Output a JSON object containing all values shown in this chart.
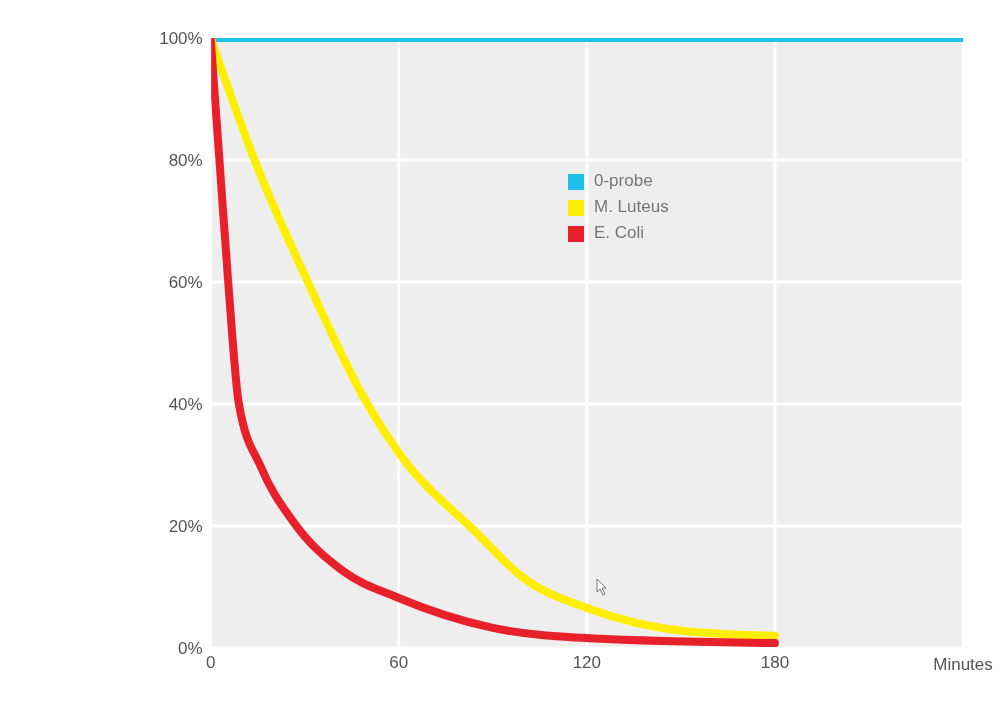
{
  "chart_data": {
    "type": "line",
    "xlabel": "Minutes",
    "xlim": [
      0,
      240
    ],
    "xticks": [
      0,
      60,
      120,
      180
    ],
    "ylim": [
      0,
      100
    ],
    "yticks": [
      {
        "value": 0,
        "label": "0%"
      },
      {
        "value": 20,
        "label": "20%"
      },
      {
        "value": 40,
        "label": "40%"
      },
      {
        "value": 60,
        "label": "60%"
      },
      {
        "value": 80,
        "label": "80%"
      },
      {
        "value": 100,
        "label": "100%"
      }
    ],
    "grid": true,
    "legend": "top right",
    "marker": "none",
    "line_style": "solid",
    "series": [
      {
        "name": "0-probe",
        "color": "#1ec0ec",
        "x": [
          0,
          240
        ],
        "values": [
          100,
          100
        ]
      },
      {
        "name": "M. Luteus",
        "color": "#ffee00",
        "x": [
          0,
          14,
          31,
          50,
          60,
          85,
          99,
          121,
          151,
          180
        ],
        "values": [
          100,
          80,
          60,
          40,
          32,
          18.8,
          11.8,
          6.4,
          2.8,
          2
        ]
      },
      {
        "name": "E. Coli",
        "color": "#e8202a",
        "x": [
          0,
          2.8,
          5.6,
          9,
          16,
          26.5,
          42,
          60,
          90,
          121,
          180
        ],
        "values": [
          100,
          80,
          60,
          40,
          29.7,
          20.6,
          12.7,
          8.2,
          3.3,
          1.6,
          0.8
        ]
      }
    ]
  }
}
